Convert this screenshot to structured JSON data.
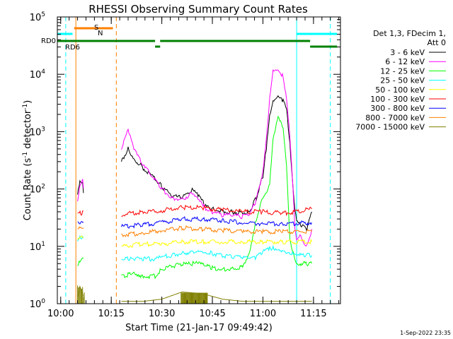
{
  "chart_data": {
    "type": "line",
    "title": "RHESSI Observing Summary Count Rates",
    "xlabel": "Start Time (21-Jan-17 09:49:42)",
    "ylabel": "Count Rate (s⁻¹ detector⁻¹)",
    "ylabel_main": "Count Rate (s",
    "ylabel_sup1": "-1",
    "ylabel_mid": " detector",
    "ylabel_sup2": "-1",
    "ylabel_end": ")",
    "yscale": "log",
    "ylim": [
      1,
      100000
    ],
    "xlim_minutes": [
      9.3,
      93.3
    ],
    "x_tick_minutes": [
      10.3,
      25.3,
      40.3,
      55.3,
      70.3,
      85.3
    ],
    "x_tick_labels": [
      "10:00",
      "10:15",
      "10:30",
      "10:45",
      "11:00",
      "11:15"
    ],
    "y_ticks": [
      {
        "value": 1,
        "base": "10",
        "exp": "0"
      },
      {
        "value": 10,
        "base": "10",
        "exp": "1"
      },
      {
        "value": 100,
        "base": "10",
        "exp": "2"
      },
      {
        "value": 1000,
        "base": "10",
        "exp": "3"
      },
      {
        "value": 10000,
        "base": "10",
        "exp": "4"
      },
      {
        "value": 100000,
        "base": "10",
        "exp": "5"
      }
    ],
    "legend_header": [
      "Det 1,3, FDecim 1,",
      "Att 0"
    ],
    "legend_placement": "right",
    "flag_labels": {
      "rd0": "RD0",
      "rd6": "RD6",
      "s": "S",
      "n": "N"
    },
    "timestamp": "1-Sep-2022 23:35",
    "gaps_minutes": [
      [
        17.3,
        28.3
      ]
    ],
    "vlines": [
      {
        "x": 11.8,
        "color": "#00ffff",
        "style": "dashed"
      },
      {
        "x": 14.8,
        "color": "#ff8000",
        "style": "solid"
      },
      {
        "x": 26.8,
        "color": "#ff8000",
        "style": "dashed"
      },
      {
        "x": 80.3,
        "color": "#00ffff",
        "style": "solid"
      },
      {
        "x": 90.3,
        "color": "#00ffff",
        "style": "dashed"
      }
    ],
    "flag_bars": [
      {
        "name": "saa",
        "color": "#00ffff",
        "level": 30,
        "segments": [
          [
            9.3,
            13.8
          ],
          [
            80.3,
            92.3
          ]
        ]
      },
      {
        "name": "s-n",
        "color": "#ff8000",
        "level": 20,
        "segments": [
          [
            14.3,
            25.8
          ]
        ]
      },
      {
        "name": "rd0",
        "color": "#008000",
        "level": 10,
        "segments": [
          [
            9.3,
            38.3
          ],
          [
            39.8,
            84.3
          ]
        ]
      },
      {
        "name": "rd6",
        "color": "#008000",
        "level": 0,
        "segments": [
          [
            38.3,
            39.8
          ],
          [
            84.3,
            92.3
          ]
        ]
      }
    ],
    "series": [
      {
        "name": "3 - 6 keV",
        "color": "#000000",
        "x": [
          15.3,
          16.0,
          16.8,
          17.3,
          28.3,
          30.3,
          32.0,
          34.8,
          38.3,
          40.3,
          43.3,
          46.3,
          49.3,
          51.3,
          53.3,
          55.3,
          58.3,
          61.3,
          64.3,
          66.3,
          68.3,
          70.3,
          71.3,
          72.3,
          73.3,
          74.8,
          76.3,
          77.3,
          78.3,
          79.3,
          79.8,
          80.3,
          81.3,
          83.3,
          84.8
        ],
        "y": [
          80,
          130,
          120,
          60,
          300,
          500,
          340,
          230,
          150,
          110,
          75,
          70,
          95,
          75,
          50,
          45,
          40,
          40,
          38,
          40,
          70,
          170,
          500,
          1800,
          3200,
          4000,
          3500,
          2500,
          600,
          100,
          45,
          30,
          25,
          20,
          40
        ]
      },
      {
        "name": "6 - 12 keV",
        "color": "#ff00ff",
        "x": [
          15.3,
          16.0,
          16.8,
          17.3,
          28.3,
          30.3,
          32.0,
          34.8,
          38.3,
          40.3,
          43.3,
          46.3,
          49.3,
          51.3,
          53.3,
          55.3,
          58.3,
          61.3,
          64.3,
          66.3,
          68.3,
          70.3,
          71.3,
          72.3,
          73.3,
          74.8,
          76.3,
          77.3,
          78.3,
          79.3,
          79.8,
          80.3,
          81.3,
          83.3,
          84.8
        ],
        "y": [
          60,
          120,
          150,
          70,
          500,
          1100,
          500,
          250,
          150,
          100,
          70,
          65,
          85,
          70,
          45,
          40,
          35,
          35,
          33,
          35,
          65,
          200,
          700,
          4000,
          12000,
          13000,
          9000,
          4000,
          800,
          80,
          20,
          12,
          15,
          10,
          20
        ]
      },
      {
        "name": "12 - 25 keV",
        "color": "#00ff00",
        "x": [
          15.3,
          16.0,
          16.8,
          17.3,
          28.3,
          30.3,
          32.0,
          34.8,
          38.3,
          40.3,
          43.3,
          46.3,
          49.3,
          51.3,
          53.3,
          55.3,
          58.3,
          61.3,
          64.3,
          66.3,
          68.3,
          70.3,
          71.3,
          72.3,
          73.3,
          74.8,
          76.3,
          77.3,
          78.3,
          79.3,
          79.8,
          80.3,
          81.3,
          83.3,
          84.8
        ],
        "y": [
          5,
          5.5,
          6,
          6,
          3,
          3.2,
          3.5,
          3,
          3,
          4,
          4.5,
          4.8,
          5,
          5,
          4.5,
          4.2,
          4,
          4,
          4.5,
          8,
          30,
          70,
          90,
          120,
          700,
          1800,
          1100,
          250,
          12,
          8,
          6,
          5,
          5,
          5,
          5
        ]
      },
      {
        "name": "25 - 50 keV",
        "color": "#00ffff",
        "x": [
          15.3,
          16.0,
          16.8,
          17.3,
          28.3,
          30.3,
          32.0,
          34.8,
          38.3,
          40.3,
          43.3,
          46.3,
          49.3,
          51.3,
          53.3,
          55.3,
          58.3,
          61.3,
          64.3,
          66.3,
          68.3,
          70.3,
          71.3,
          72.3,
          73.3,
          74.8,
          76.3,
          77.3,
          78.3,
          79.3,
          79.8,
          80.3,
          81.3,
          83.3,
          84.8
        ],
        "y": [
          12,
          14,
          15,
          13,
          6,
          6,
          6,
          6,
          6,
          6.5,
          7,
          7.5,
          8,
          8.5,
          8,
          7.5,
          7,
          6.5,
          6.5,
          6,
          6.5,
          8,
          8.5,
          9,
          9.5,
          9,
          8.5,
          8,
          8,
          7.5,
          7,
          6.5,
          7,
          7,
          7
        ]
      },
      {
        "name": "50 - 100 keV",
        "color": "#ffff00",
        "x": [
          15.3,
          16.8,
          17.3,
          28.3,
          34.8,
          40.3,
          46.3,
          52.3,
          58.3,
          64.3,
          70.3,
          76.3,
          80.3,
          84.8
        ],
        "y": [
          14,
          15,
          14,
          10,
          11,
          11,
          12,
          12,
          12,
          12,
          12,
          12,
          12,
          12
        ]
      },
      {
        "name": "100 - 300 keV",
        "color": "#ff0000",
        "x": [
          15.3,
          16.8,
          17.3,
          28.3,
          34.8,
          40.3,
          46.3,
          52.3,
          58.3,
          64.3,
          70.3,
          76.3,
          80.3,
          84.8
        ],
        "y": [
          38,
          38,
          40,
          36,
          40,
          42,
          48,
          47,
          43,
          40,
          40,
          38,
          40,
          45
        ]
      },
      {
        "name": "300 - 800 keV",
        "color": "#0000ff",
        "x": [
          15.3,
          16.8,
          17.3,
          28.3,
          34.8,
          40.3,
          46.3,
          52.3,
          58.3,
          64.3,
          70.3,
          76.3,
          80.3,
          84.8
        ],
        "y": [
          27,
          27,
          28,
          22,
          24,
          26,
          30,
          30,
          28,
          26,
          25,
          25,
          25,
          26
        ]
      },
      {
        "name": "800 - 7000 keV",
        "color": "#ff8000",
        "x": [
          15.3,
          16.8,
          17.3,
          28.3,
          34.8,
          40.3,
          46.3,
          52.3,
          58.3,
          64.3,
          70.3,
          76.3,
          80.3,
          84.8
        ],
        "y": [
          20,
          20,
          20,
          16,
          17,
          19,
          21,
          20,
          19,
          18,
          18,
          18,
          18,
          18
        ]
      },
      {
        "name": "7000 - 15000 keV",
        "color": "#808000",
        "x": [
          15.3,
          16.0,
          16.8,
          17.3,
          28.3,
          34.8,
          40.3,
          46.3,
          52.3,
          58.3,
          64.3,
          70.3,
          76.3,
          80.3,
          84.8
        ],
        "y": [
          1.3,
          2.0,
          1.5,
          1.2,
          1.1,
          1.1,
          1.2,
          1.6,
          1.5,
          1.2,
          1.1,
          1.1,
          1.1,
          1.1,
          1.1
        ]
      }
    ]
  }
}
